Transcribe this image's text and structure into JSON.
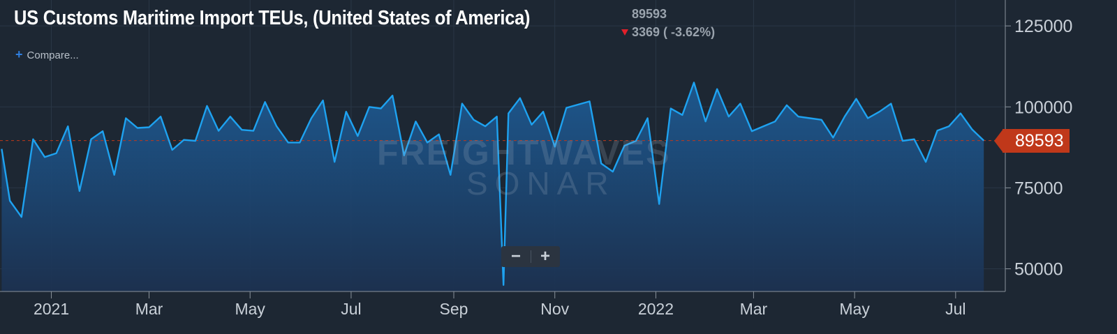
{
  "header": {
    "title": "US Customs Maritime Import TEUs, (United States of America)",
    "current_value": "89593",
    "change_text": "3369 ( -3.62%)",
    "compare_label": "Compare..."
  },
  "watermark": {
    "line1": "FREIGHTWAVES",
    "line2": "SONAR"
  },
  "zoom": {
    "minus": "−",
    "plus": "+"
  },
  "colors": {
    "background": "#1d2733",
    "line": "#1ea2f0",
    "badge": "#c0381a",
    "change_down": "#e0202a"
  },
  "chart_data": {
    "type": "area",
    "x_start": "2020-12-01",
    "x_end": "2022-07-31",
    "x_ticks": [
      {
        "date": "2021-01-01",
        "label": "2021"
      },
      {
        "date": "2021-03-01",
        "label": "Mar"
      },
      {
        "date": "2021-05-01",
        "label": "May"
      },
      {
        "date": "2021-07-01",
        "label": "Jul"
      },
      {
        "date": "2021-09-01",
        "label": "Sep"
      },
      {
        "date": "2021-11-01",
        "label": "Nov"
      },
      {
        "date": "2022-01-01",
        "label": "2022"
      },
      {
        "date": "2022-03-01",
        "label": "Mar"
      },
      {
        "date": "2022-05-01",
        "label": "May"
      },
      {
        "date": "2022-07-01",
        "label": "Jul"
      }
    ],
    "y_ticks": [
      50000,
      75000,
      100000,
      125000
    ],
    "ylim": [
      43000,
      133000
    ],
    "last_value": 89593,
    "series": [
      {
        "points": [
          [
            "2020-12-02",
            87000
          ],
          [
            "2020-12-07",
            71000
          ],
          [
            "2020-12-14",
            66000
          ],
          [
            "2020-12-21",
            90000
          ],
          [
            "2020-12-28",
            84500
          ],
          [
            "2021-01-04",
            85700
          ],
          [
            "2021-01-11",
            94000
          ],
          [
            "2021-01-18",
            74000
          ],
          [
            "2021-01-25",
            90000
          ],
          [
            "2021-02-01",
            92500
          ],
          [
            "2021-02-08",
            79000
          ],
          [
            "2021-02-15",
            96500
          ],
          [
            "2021-02-22",
            93500
          ],
          [
            "2021-03-01",
            93700
          ],
          [
            "2021-03-08",
            97000
          ],
          [
            "2021-03-15",
            86700
          ],
          [
            "2021-03-22",
            89800
          ],
          [
            "2021-03-29",
            89500
          ],
          [
            "2021-04-05",
            100300
          ],
          [
            "2021-04-12",
            92600
          ],
          [
            "2021-04-19",
            97000
          ],
          [
            "2021-04-26",
            92900
          ],
          [
            "2021-05-03",
            92600
          ],
          [
            "2021-05-10",
            101500
          ],
          [
            "2021-05-17",
            94000
          ],
          [
            "2021-05-24",
            89000
          ],
          [
            "2021-05-31",
            89000
          ],
          [
            "2021-06-07",
            96500
          ],
          [
            "2021-06-14",
            102000
          ],
          [
            "2021-06-21",
            83000
          ],
          [
            "2021-06-28",
            98500
          ],
          [
            "2021-07-05",
            91000
          ],
          [
            "2021-07-12",
            100000
          ],
          [
            "2021-07-19",
            99500
          ],
          [
            "2021-07-26",
            103500
          ],
          [
            "2021-08-02",
            85000
          ],
          [
            "2021-08-09",
            95500
          ],
          [
            "2021-08-16",
            89000
          ],
          [
            "2021-08-23",
            91500
          ],
          [
            "2021-08-30",
            79000
          ],
          [
            "2021-09-06",
            101000
          ],
          [
            "2021-09-13",
            96000
          ],
          [
            "2021-09-20",
            94000
          ],
          [
            "2021-09-27",
            97000
          ],
          [
            "2021-10-01",
            45000
          ],
          [
            "2021-10-04",
            98000
          ],
          [
            "2021-10-11",
            102700
          ],
          [
            "2021-10-18",
            94500
          ],
          [
            "2021-10-25",
            98500
          ],
          [
            "2021-11-01",
            87700
          ],
          [
            "2021-11-08",
            99700
          ],
          [
            "2021-11-15",
            100700
          ],
          [
            "2021-11-22",
            101700
          ],
          [
            "2021-11-29",
            82500
          ],
          [
            "2021-12-06",
            80000
          ],
          [
            "2021-12-13",
            88000
          ],
          [
            "2021-12-20",
            89500
          ],
          [
            "2021-12-27",
            96500
          ],
          [
            "2022-01-03",
            70000
          ],
          [
            "2022-01-10",
            99500
          ],
          [
            "2022-01-17",
            97500
          ],
          [
            "2022-01-24",
            107500
          ],
          [
            "2022-01-31",
            95500
          ],
          [
            "2022-02-07",
            105500
          ],
          [
            "2022-02-14",
            97000
          ],
          [
            "2022-02-21",
            101000
          ],
          [
            "2022-02-28",
            92500
          ],
          [
            "2022-03-07",
            94000
          ],
          [
            "2022-03-14",
            95500
          ],
          [
            "2022-03-21",
            100500
          ],
          [
            "2022-03-28",
            97000
          ],
          [
            "2022-04-04",
            96500
          ],
          [
            "2022-04-11",
            96000
          ],
          [
            "2022-04-18",
            90500
          ],
          [
            "2022-04-25",
            97000
          ],
          [
            "2022-05-02",
            102500
          ],
          [
            "2022-05-09",
            96500
          ],
          [
            "2022-05-16",
            98500
          ],
          [
            "2022-05-23",
            101000
          ],
          [
            "2022-05-30",
            89500
          ],
          [
            "2022-06-06",
            90000
          ],
          [
            "2022-06-13",
            83000
          ],
          [
            "2022-06-20",
            92700
          ],
          [
            "2022-06-27",
            94000
          ],
          [
            "2022-07-04",
            98000
          ],
          [
            "2022-07-11",
            93000
          ],
          [
            "2022-07-18",
            89593
          ]
        ]
      }
    ]
  }
}
